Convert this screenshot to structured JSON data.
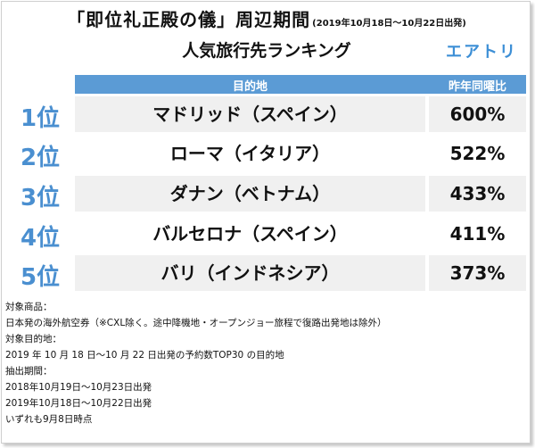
{
  "header": {
    "title": "「即位礼正殿の儀」周辺期間",
    "period": "(2019年10月18日～10月22日出発)",
    "subtitle": "人気旅行先ランキング",
    "brand": "エアトリ"
  },
  "table": {
    "columns": {
      "destination": "目的地",
      "ratio": "昨年同曜比"
    },
    "rows": [
      {
        "rank": "1位",
        "destination": "マドリッド（スペイン）",
        "ratio": "600%"
      },
      {
        "rank": "2位",
        "destination": "ローマ（イタリア）",
        "ratio": "522%"
      },
      {
        "rank": "3位",
        "destination": "ダナン（ベトナム）",
        "ratio": "433%"
      },
      {
        "rank": "4位",
        "destination": "バルセロナ（スペイン）",
        "ratio": "411%"
      },
      {
        "rank": "5位",
        "destination": "バリ（インドネシア）",
        "ratio": "373%"
      }
    ]
  },
  "notes": [
    "対象商品：",
    "日本発の海外航空券（※CXL除く。途中降機地・オープンジョー旅程で復路出発地は除外）",
    "対象目的地：",
    "2019 年 10 月 18 日～10 月 22 日出発の予約数TOP30 の目的地",
    "抽出期間：",
    "2018年10月19日～10月23日出発",
    "2019年10月18日～10月22日出発",
    "いずれも9月8日時点"
  ],
  "colors": {
    "accent_blue": "#5b9bd5",
    "rank_blue": "#4a8fd0",
    "row_shade": "#f0f0f0"
  }
}
